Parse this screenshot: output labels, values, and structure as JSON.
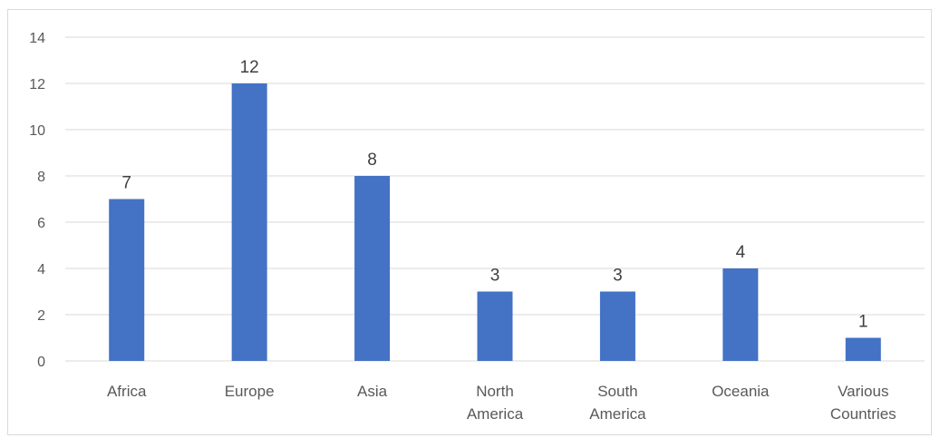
{
  "chart_data": {
    "type": "bar",
    "categories": [
      "Africa",
      "Europe",
      "Asia",
      "North America",
      "South America",
      "Oceania",
      "Various Countries"
    ],
    "category_lines": [
      [
        "Africa"
      ],
      [
        "Europe"
      ],
      [
        "Asia"
      ],
      [
        "North",
        "America"
      ],
      [
        "South",
        "America"
      ],
      [
        "Oceania"
      ],
      [
        "Various",
        "Countries"
      ]
    ],
    "values": [
      7,
      12,
      8,
      3,
      3,
      4,
      1
    ],
    "ylim": [
      0,
      14
    ],
    "yticks": [
      0,
      2,
      4,
      6,
      8,
      10,
      12,
      14
    ],
    "grid": true,
    "data_labels": true,
    "legend": "none",
    "bar_color": "#4472C4",
    "grid_color": "#d9d9d9"
  }
}
